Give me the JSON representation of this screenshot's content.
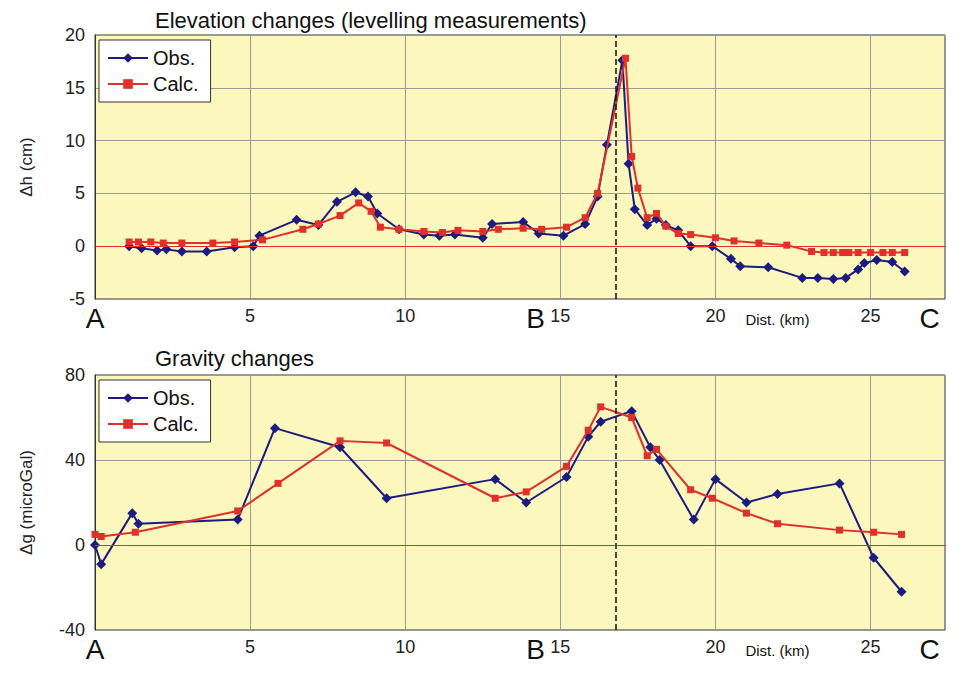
{
  "chart_data": [
    {
      "type": "line",
      "title": "Elevation changes (levelling measurements)",
      "y_label": "Δh (cm)",
      "x_label": "Dist. (km)",
      "xlim": [
        0,
        27.4
      ],
      "xticks": [
        5,
        10,
        15,
        20,
        25
      ],
      "ylim": [
        -5,
        20
      ],
      "yticks": [
        -5,
        0,
        5,
        10,
        15,
        20
      ],
      "grid": true,
      "legend": "upper left",
      "annotations": [
        {
          "text": "A",
          "x": 0
        },
        {
          "text": "B",
          "x": 14.2
        },
        {
          "text": "C",
          "x": 26.9
        }
      ],
      "dashed_line_x": 16.8,
      "red_line_y": 0,
      "series": [
        {
          "name": "Obs.",
          "color": "#1c1c80",
          "marker": "diamond",
          "x": [
            1.1,
            1.5,
            2.0,
            2.3,
            2.8,
            3.6,
            4.5,
            5.1,
            5.3,
            6.5,
            7.2,
            7.8,
            8.4,
            8.8,
            9.1,
            9.8,
            10.6,
            11.1,
            11.6,
            12.5,
            12.8,
            13.8,
            14.3,
            15.1,
            15.8,
            16.2,
            16.5,
            17.0,
            17.2,
            17.4,
            17.8,
            18.1,
            18.4,
            18.8,
            19.2,
            19.9,
            20.5,
            20.8,
            21.7,
            22.8,
            23.3,
            23.8,
            24.2,
            24.6,
            24.8,
            25.2,
            25.7,
            26.1
          ],
          "values": [
            0,
            -0.2,
            -0.4,
            -0.3,
            -0.5,
            -0.5,
            -0.1,
            0,
            1.0,
            2.5,
            2.0,
            4.2,
            5.1,
            4.7,
            3.1,
            1.6,
            1.1,
            1.0,
            1.1,
            0.8,
            2.1,
            2.3,
            1.2,
            1.0,
            2.1,
            4.7,
            9.6,
            17.6,
            7.8,
            3.5,
            2.0,
            2.6,
            2.0,
            1.5,
            0,
            0,
            -1.2,
            -1.9,
            -2.0,
            -3.0,
            -3.0,
            -3.1,
            -3.0,
            -2.2,
            -1.6,
            -1.3,
            -1.5,
            -2.4
          ]
        },
        {
          "name": "Calc.",
          "color": "#e0302a",
          "marker": "square",
          "x": [
            1.1,
            1.4,
            1.8,
            2.2,
            2.8,
            3.8,
            4.5,
            5.4,
            6.7,
            7.2,
            7.9,
            8.5,
            8.9,
            9.2,
            9.8,
            10.6,
            11.2,
            11.7,
            12.5,
            13.0,
            13.8,
            14.4,
            15.2,
            15.8,
            16.2,
            17.1,
            17.3,
            17.5,
            17.8,
            18.1,
            18.4,
            18.8,
            19.2,
            20.0,
            20.6,
            21.4,
            22.3,
            23.1,
            23.5,
            23.8,
            24.1,
            24.3,
            24.6,
            25.0,
            25.4,
            25.7,
            26.1
          ],
          "values": [
            0.4,
            0.4,
            0.4,
            0.3,
            0.3,
            0.3,
            0.4,
            0.6,
            1.6,
            2.1,
            2.9,
            4.1,
            3.3,
            1.8,
            1.6,
            1.4,
            1.3,
            1.5,
            1.4,
            1.6,
            1.7,
            1.6,
            1.8,
            2.7,
            5.0,
            17.8,
            8.5,
            5.5,
            2.7,
            3.1,
            1.9,
            1.2,
            1.1,
            0.8,
            0.5,
            0.3,
            0.1,
            -0.5,
            -0.6,
            -0.6,
            -0.6,
            -0.6,
            -0.6,
            -0.6,
            -0.6,
            -0.6,
            -0.6
          ]
        }
      ]
    },
    {
      "type": "line",
      "title": "Gravity changes",
      "y_label": "Δg (microGal)",
      "x_label": "Dist. (km)",
      "xlim": [
        0,
        27.4
      ],
      "xticks": [
        5,
        10,
        15,
        20,
        25
      ],
      "ylim": [
        -40,
        80
      ],
      "yticks": [
        -40,
        0,
        40,
        80
      ],
      "grid": true,
      "legend": "upper left",
      "annotations": [
        {
          "text": "A",
          "x": 0
        },
        {
          "text": "B",
          "x": 14.2
        },
        {
          "text": "C",
          "x": 26.9
        }
      ],
      "dashed_line_x": 16.8,
      "red_line_y": 0,
      "series": [
        {
          "name": "Obs.",
          "color": "#1c1c80",
          "marker": "diamond",
          "x": [
            0,
            0.2,
            1.2,
            1.4,
            4.6,
            5.8,
            7.9,
            9.4,
            12.9,
            13.9,
            15.2,
            15.9,
            16.3,
            17.3,
            17.9,
            18.2,
            19.3,
            20.0,
            21.0,
            22.0,
            24.0,
            25.1,
            26.0
          ],
          "values": [
            0,
            -9,
            15,
            10,
            12,
            55,
            46,
            22,
            31,
            20,
            32,
            51,
            58,
            63,
            46,
            40,
            12,
            31,
            20,
            24,
            29,
            -6,
            -22
          ]
        },
        {
          "name": "Calc.",
          "color": "#e0302a",
          "marker": "square",
          "x": [
            0,
            0.2,
            1.3,
            4.6,
            5.9,
            7.9,
            9.4,
            12.9,
            13.9,
            15.2,
            15.9,
            16.3,
            17.3,
            17.8,
            18.1,
            19.2,
            19.9,
            21.0,
            22.0,
            24.0,
            25.1,
            26.0
          ],
          "values": [
            5,
            4,
            6,
            16,
            29,
            49,
            48,
            22,
            25,
            37,
            54,
            65,
            60,
            42,
            45,
            26,
            22,
            15,
            10,
            7,
            6,
            5
          ]
        }
      ]
    }
  ]
}
